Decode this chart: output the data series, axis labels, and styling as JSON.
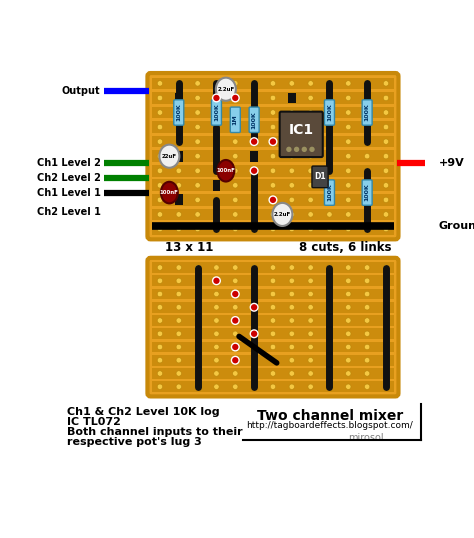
{
  "bg_color": "#ffffff",
  "board_color": "#E8A020",
  "board_outline_color": "#C8890A",
  "strip_color": "#C8890A",
  "hole_color": "#F5C842",
  "cut_color": "#111111",
  "link_color": "#111111",
  "red_dot_color": "#CC0000",
  "resistor_color": "#87CEEB",
  "resistor_edge": "#3388AA",
  "cap_elec_color": "#f0f0f0",
  "cap_ceramic_color": "#8B0000",
  "ic_color": "#5A4A3A",
  "diode_color": "#444444",
  "title": "Two channel mixer",
  "url": "http://tagboardeffects.blogspot.com/",
  "author": "mirosol",
  "label_output": "Output",
  "label_ch1_level2": "Ch1 Level 2",
  "label_ch2_level2": "Ch2 Level 2",
  "label_ch1_level1": "Ch1 Level 1",
  "label_ch2_level1": "Ch2 Level 1",
  "label_9v": "+9V",
  "label_ground": "Ground",
  "label_13x11": "13 x 11",
  "label_cuts": "8 cuts, 6 links",
  "label_ic1": "IC1",
  "label_d1": "D1",
  "note_line1": "Ch1 & Ch2 Level 10K log",
  "note_line2": "IC TL072",
  "note_line3": "Both channel inputs to their",
  "note_line4": "respective pot's lug 3"
}
